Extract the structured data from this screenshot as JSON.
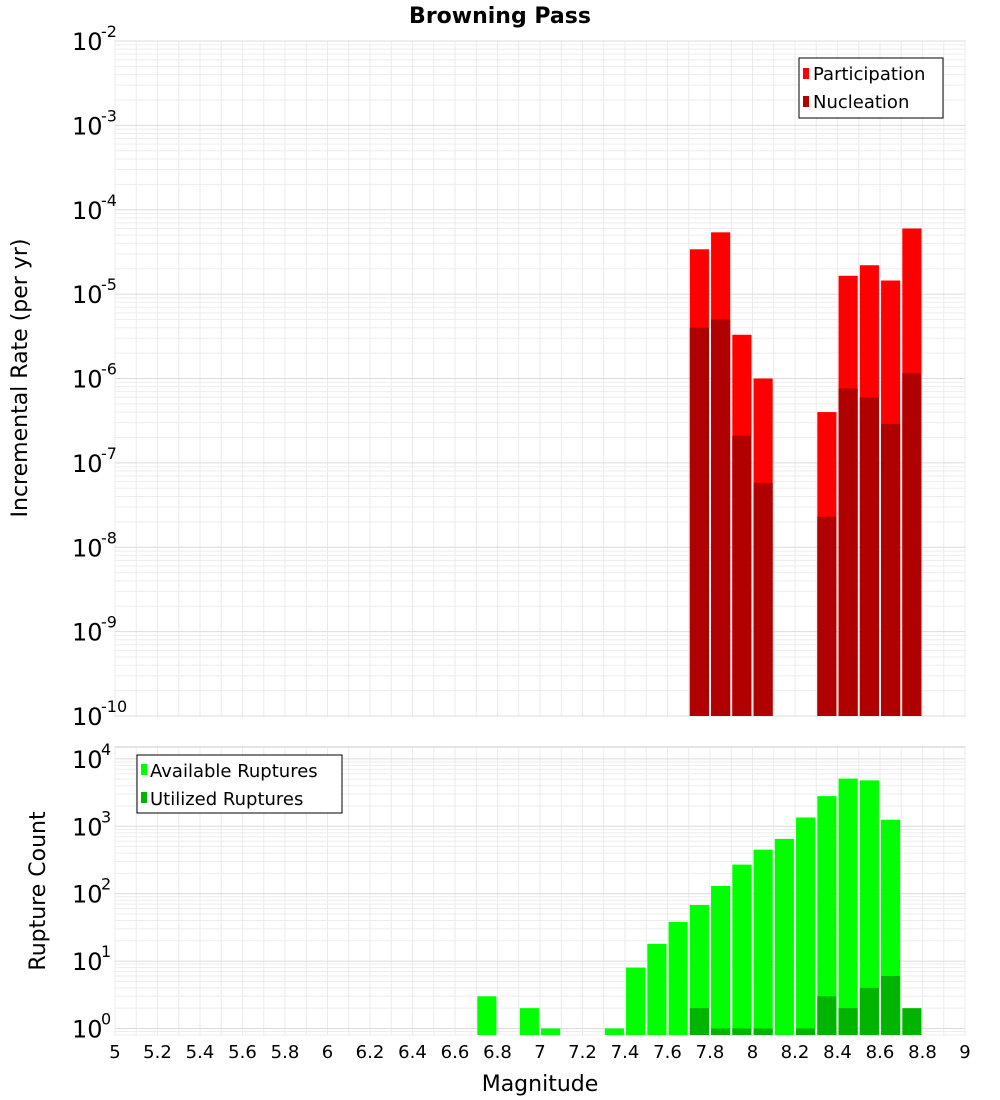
{
  "chart_data": [
    {
      "type": "bar",
      "title": "Browning Pass",
      "xlabel": "",
      "ylabel": "Incremental Rate (per yr)",
      "yscale": "log",
      "ylim": [
        1e-10,
        0.01
      ],
      "xlim": [
        5,
        9
      ],
      "y_ticks": [
        {
          "base": "10",
          "exp": "-10"
        },
        {
          "base": "10",
          "exp": "-9"
        },
        {
          "base": "10",
          "exp": "-8"
        },
        {
          "base": "10",
          "exp": "-7"
        },
        {
          "base": "10",
          "exp": "-6"
        },
        {
          "base": "10",
          "exp": "-5"
        },
        {
          "base": "10",
          "exp": "-4"
        },
        {
          "base": "10",
          "exp": "-3"
        },
        {
          "base": "10",
          "exp": "-2"
        }
      ],
      "legend_position": "top-right",
      "series": [
        {
          "name": "Participation",
          "color": "#ff0000",
          "x": [
            7.75,
            7.85,
            7.95,
            8.05,
            8.35,
            8.45,
            8.55,
            8.65,
            8.75
          ],
          "values": [
            3.4e-05,
            5.4e-05,
            3.3e-06,
            1e-06,
            4e-07,
            1.65e-05,
            2.2e-05,
            1.45e-05,
            6e-05
          ]
        },
        {
          "name": "Nucleation",
          "color": "#b00000",
          "x": [
            7.75,
            7.85,
            7.95,
            8.05,
            8.35,
            8.45,
            8.55,
            8.65,
            8.75
          ],
          "values": [
            4e-06,
            5e-06,
            2.1e-07,
            5.8e-08,
            2.3e-08,
            7.6e-07,
            6e-07,
            2.9e-07,
            1.15e-06
          ]
        }
      ]
    },
    {
      "type": "bar",
      "xlabel": "Magnitude",
      "ylabel": "Rupture Count",
      "yscale": "log",
      "ylim": [
        0.8,
        15000
      ],
      "xlim": [
        5,
        9
      ],
      "x_ticks": [
        "5",
        "5.2",
        "5.4",
        "5.6",
        "5.8",
        "6",
        "6.2",
        "6.4",
        "6.6",
        "6.8",
        "7",
        "7.2",
        "7.4",
        "7.6",
        "7.8",
        "8",
        "8.2",
        "8.4",
        "8.6",
        "8.8",
        "9"
      ],
      "y_ticks": [
        {
          "base": "10",
          "exp": "0"
        },
        {
          "base": "10",
          "exp": "1"
        },
        {
          "base": "10",
          "exp": "2"
        },
        {
          "base": "10",
          "exp": "3"
        },
        {
          "base": "10",
          "exp": "4"
        }
      ],
      "legend_position": "top-left",
      "series": [
        {
          "name": "Available Ruptures",
          "color": "#00ff00",
          "x": [
            6.75,
            6.95,
            7.05,
            7.35,
            7.45,
            7.55,
            7.65,
            7.75,
            7.85,
            7.95,
            8.05,
            8.15,
            8.25,
            8.35,
            8.45,
            8.55,
            8.65
          ],
          "values": [
            3,
            2,
            1,
            1,
            8,
            18,
            38,
            68,
            130,
            270,
            450,
            650,
            1350,
            2800,
            5100,
            4800,
            1250
          ]
        },
        {
          "name": "Utilized Ruptures",
          "color": "#00b400",
          "x": [
            7.75,
            7.85,
            7.95,
            8.05,
            8.25,
            8.35,
            8.45,
            8.55,
            8.65,
            8.75
          ],
          "values": [
            2,
            1,
            1,
            1,
            1,
            3,
            2,
            4,
            6,
            2
          ]
        }
      ]
    }
  ]
}
